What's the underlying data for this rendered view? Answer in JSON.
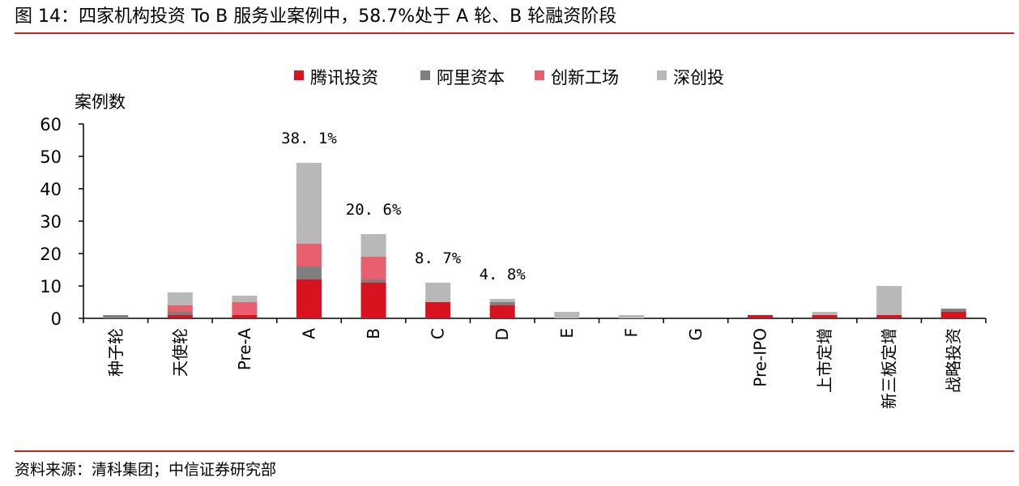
{
  "title": "图 14：四家机构投资 To B 服务业案例中，58.7%处于 A 轮、B 轮融资阶段",
  "source": "资料来源：清科集团；中信证券研究部",
  "chart_data": {
    "type": "bar",
    "stacked": true,
    "ylabel": "案例数",
    "ylim": [
      0,
      60
    ],
    "yticks": [
      0,
      10,
      20,
      30,
      40,
      50,
      60
    ],
    "legend_position": "top-center",
    "categories": [
      "种子轮",
      "天使轮",
      "Pre-A",
      "A",
      "B",
      "C",
      "D",
      "E",
      "F",
      "G",
      "Pre-IPO",
      "上市定增",
      "新三板定增",
      "战略投资"
    ],
    "series": [
      {
        "name": "腾讯投资",
        "color": "#d9121f",
        "values": [
          0,
          1,
          1,
          12,
          11,
          5,
          4,
          0,
          0,
          0,
          1,
          1,
          1,
          2
        ]
      },
      {
        "name": "阿里资本",
        "color": "#7f7f7f",
        "values": [
          1,
          1,
          0,
          4,
          1,
          0,
          1,
          0,
          0,
          0,
          0,
          0,
          0,
          1
        ]
      },
      {
        "name": "创新工场",
        "color": "#e8606f",
        "values": [
          0,
          2,
          4,
          7,
          7,
          0,
          0,
          0,
          0,
          0,
          0,
          0,
          0,
          0
        ]
      },
      {
        "name": "深创投",
        "color": "#b8b8b8",
        "values": [
          0,
          4,
          2,
          25,
          7,
          6,
          1,
          2,
          1,
          0,
          0,
          1,
          9,
          0
        ]
      }
    ],
    "annotations": [
      {
        "category": "A",
        "text": "38. 1%"
      },
      {
        "category": "B",
        "text": "20. 6%"
      },
      {
        "category": "C",
        "text": "8. 7%"
      },
      {
        "category": "D",
        "text": "4. 8%"
      }
    ]
  }
}
